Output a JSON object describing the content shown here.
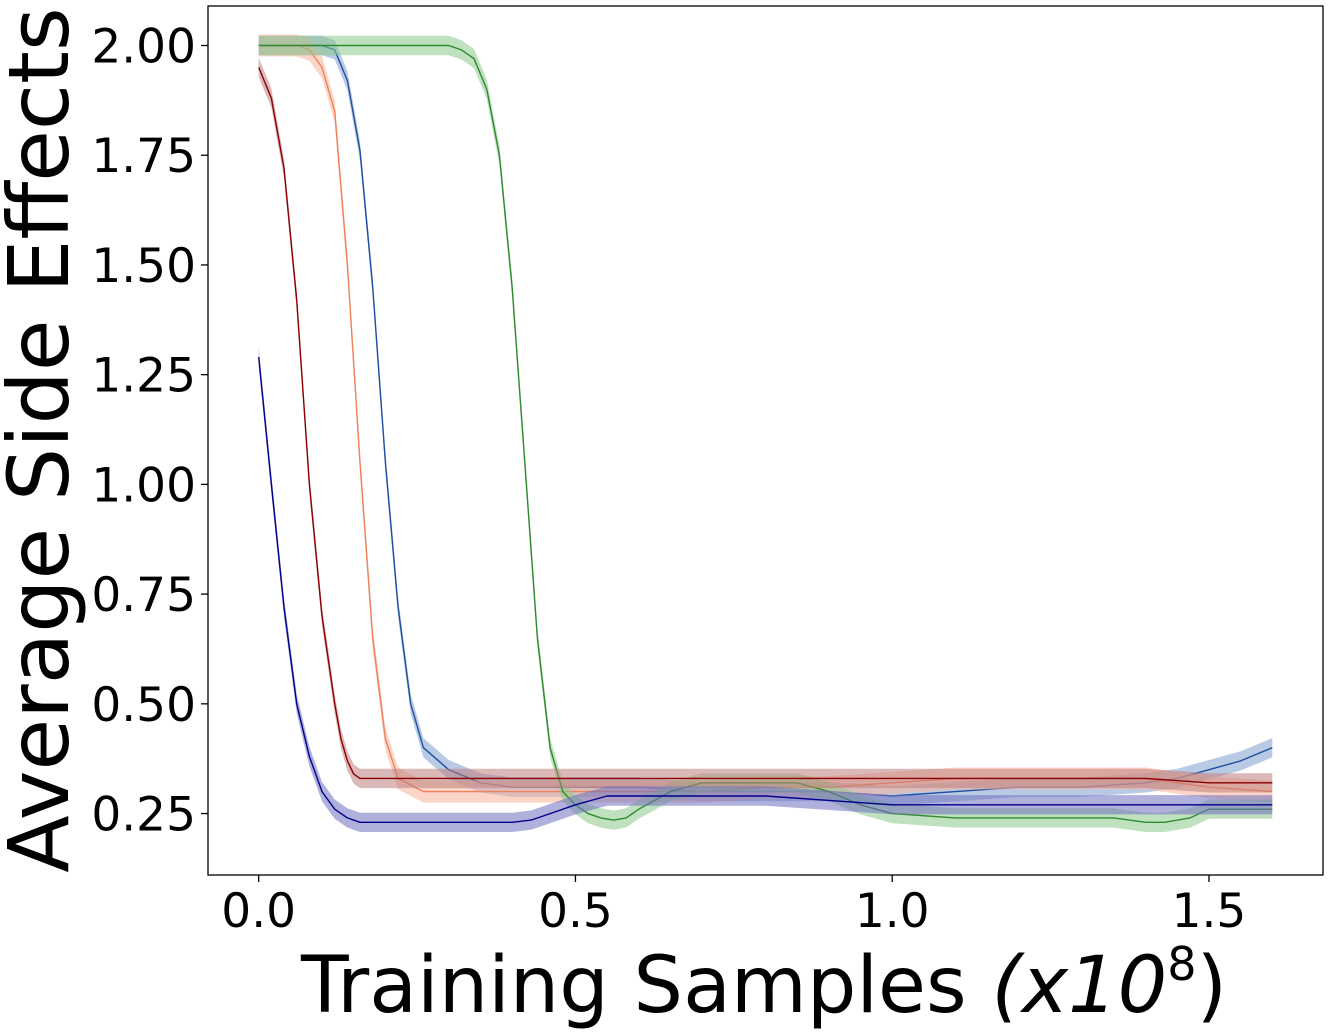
{
  "chart_data": {
    "type": "line",
    "xlabel": "Training Samples",
    "xlabel_suffix": "(x10",
    "xlabel_exponent": "8",
    "xlabel_close": ")",
    "ylabel": "Average Side Effects",
    "xlim": [
      -0.08,
      1.68
    ],
    "ylim": [
      0.11,
      2.09
    ],
    "x_ticks": [
      {
        "value": 0.0,
        "label": "0.0"
      },
      {
        "value": 0.5,
        "label": "0.5"
      },
      {
        "value": 1.0,
        "label": "1.0"
      },
      {
        "value": 1.5,
        "label": "1.5"
      }
    ],
    "y_ticks": [
      {
        "value": 0.25,
        "label": "0.25"
      },
      {
        "value": 0.5,
        "label": "0.50"
      },
      {
        "value": 0.75,
        "label": "0.75"
      },
      {
        "value": 1.0,
        "label": "1.00"
      },
      {
        "value": 1.25,
        "label": "1.25"
      },
      {
        "value": 1.5,
        "label": "1.50"
      },
      {
        "value": 1.75,
        "label": "1.75"
      },
      {
        "value": 2.0,
        "label": "2.00"
      }
    ],
    "grid": false,
    "legend": "none",
    "series": [
      {
        "color": "#1f4fa0",
        "fill": "#7f9fd0",
        "x": [
          0.0,
          0.08,
          0.1,
          0.12,
          0.14,
          0.16,
          0.18,
          0.2,
          0.22,
          0.24,
          0.26,
          0.3,
          0.35,
          0.4,
          0.45,
          0.5,
          0.6,
          0.7,
          0.8,
          0.9,
          1.0,
          1.1,
          1.2,
          1.3,
          1.4,
          1.45,
          1.5,
          1.55,
          1.6
        ],
        "y": [
          2.0,
          2.0,
          2.0,
          1.99,
          1.92,
          1.76,
          1.45,
          1.05,
          0.72,
          0.5,
          0.4,
          0.35,
          0.32,
          0.31,
          0.31,
          0.31,
          0.31,
          0.3,
          0.3,
          0.3,
          0.29,
          0.3,
          0.31,
          0.31,
          0.32,
          0.33,
          0.35,
          0.37,
          0.4
        ],
        "band": 0.022
      },
      {
        "color": "#f0805a",
        "fill": "#f8b59a",
        "x": [
          0.0,
          0.06,
          0.08,
          0.1,
          0.12,
          0.14,
          0.16,
          0.18,
          0.2,
          0.22,
          0.26,
          0.3,
          0.4,
          0.5,
          0.6,
          0.7,
          0.8,
          0.9,
          1.0,
          1.1,
          1.2,
          1.3,
          1.4,
          1.5,
          1.6
        ],
        "y": [
          2.0,
          2.0,
          1.99,
          1.95,
          1.85,
          1.5,
          1.05,
          0.65,
          0.42,
          0.33,
          0.3,
          0.3,
          0.3,
          0.3,
          0.3,
          0.3,
          0.31,
          0.31,
          0.32,
          0.33,
          0.33,
          0.33,
          0.33,
          0.31,
          0.3
        ],
        "band": 0.025
      },
      {
        "color": "#2e8b2e",
        "fill": "#8cc88c",
        "x": [
          0.0,
          0.3,
          0.32,
          0.34,
          0.36,
          0.38,
          0.4,
          0.42,
          0.44,
          0.46,
          0.48,
          0.5,
          0.52,
          0.54,
          0.56,
          0.58,
          0.6,
          0.65,
          0.7,
          0.75,
          0.8,
          0.85,
          0.9,
          0.95,
          1.0,
          1.1,
          1.2,
          1.3,
          1.35,
          1.4,
          1.43,
          1.47,
          1.5,
          1.55,
          1.6
        ],
        "y": [
          2.0,
          2.0,
          1.99,
          1.97,
          1.9,
          1.75,
          1.45,
          1.05,
          0.65,
          0.4,
          0.3,
          0.27,
          0.25,
          0.24,
          0.235,
          0.24,
          0.26,
          0.3,
          0.32,
          0.32,
          0.32,
          0.32,
          0.3,
          0.27,
          0.25,
          0.24,
          0.24,
          0.24,
          0.24,
          0.23,
          0.23,
          0.24,
          0.26,
          0.26,
          0.26
        ],
        "band": 0.022
      },
      {
        "color": "#8b0000",
        "fill": "#c08080",
        "x": [
          0.0,
          0.02,
          0.04,
          0.06,
          0.08,
          0.1,
          0.12,
          0.13,
          0.14,
          0.15,
          0.16,
          0.18,
          0.22,
          0.3,
          0.4,
          0.5,
          0.6,
          0.7,
          0.8,
          0.9,
          1.0,
          1.1,
          1.2,
          1.3,
          1.4,
          1.5,
          1.6
        ],
        "y": [
          1.95,
          1.88,
          1.72,
          1.42,
          1.0,
          0.7,
          0.5,
          0.42,
          0.37,
          0.34,
          0.33,
          0.33,
          0.33,
          0.33,
          0.33,
          0.33,
          0.33,
          0.33,
          0.33,
          0.33,
          0.33,
          0.33,
          0.33,
          0.33,
          0.33,
          0.32,
          0.32
        ],
        "band": 0.022
      },
      {
        "color": "#00008b",
        "fill": "#7070c0",
        "x": [
          0.0,
          0.02,
          0.04,
          0.06,
          0.08,
          0.1,
          0.12,
          0.14,
          0.16,
          0.2,
          0.25,
          0.3,
          0.35,
          0.4,
          0.43,
          0.46,
          0.5,
          0.55,
          0.6,
          0.7,
          0.8,
          0.9,
          1.0,
          1.1,
          1.2,
          1.3,
          1.4,
          1.5,
          1.6
        ],
        "y": [
          1.29,
          1.0,
          0.72,
          0.5,
          0.38,
          0.3,
          0.26,
          0.24,
          0.23,
          0.23,
          0.23,
          0.23,
          0.23,
          0.23,
          0.235,
          0.25,
          0.27,
          0.29,
          0.29,
          0.29,
          0.29,
          0.28,
          0.27,
          0.27,
          0.27,
          0.27,
          0.27,
          0.27,
          0.27
        ],
        "band": 0.022
      }
    ]
  }
}
